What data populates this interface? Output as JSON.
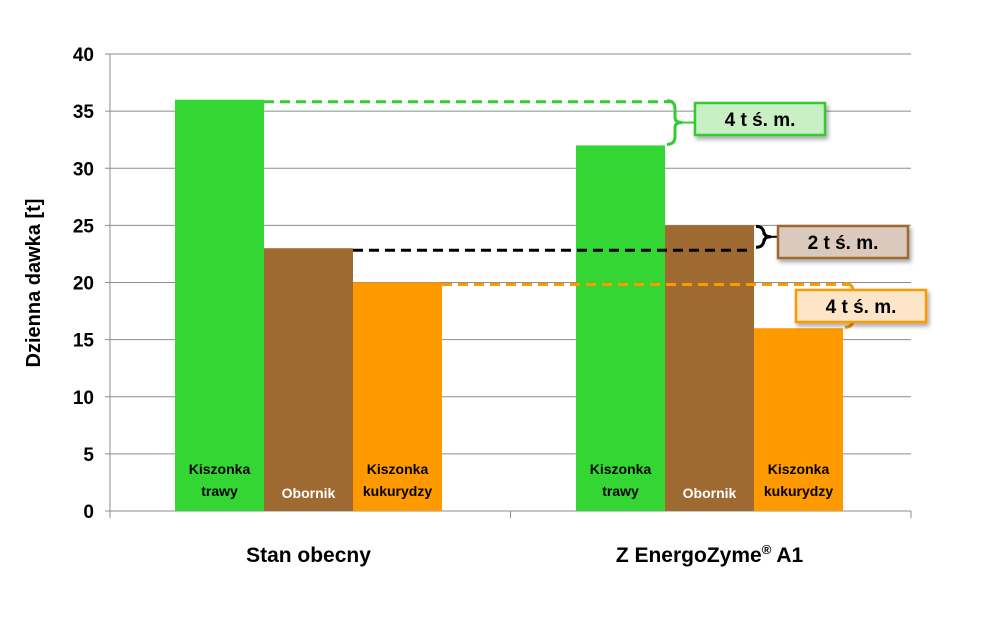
{
  "chart_data": {
    "type": "bar",
    "ylabel": "Dzienna dawka [t]",
    "ylim": [
      0,
      40
    ],
    "yticks": [
      "0",
      "5",
      "10",
      "15",
      "20",
      "25",
      "30",
      "35",
      "40"
    ],
    "grid": true,
    "categories": [
      {
        "label": "Stan obecny",
        "superscript": ""
      },
      {
        "label": "Z EnergoZyme",
        "superscript": "®",
        "suffix": " A1"
      }
    ],
    "series": [
      {
        "name": "Kiszonka trawy",
        "lines": [
          "Kiszonka",
          "trawy"
        ],
        "color": "#33d633",
        "label_color": "#000000",
        "values": [
          36,
          32
        ]
      },
      {
        "name": "Obornik",
        "lines": [
          "Obornik"
        ],
        "color": "#9e6a32",
        "label_color": "#ffffff",
        "values": [
          23,
          25
        ]
      },
      {
        "name": "Kiszonka kukurydzy",
        "lines": [
          "Kiszonka",
          "kukurydzy"
        ],
        "color": "#ff9900",
        "label_color": "#000000",
        "values": [
          20,
          16
        ]
      }
    ],
    "annotations": [
      {
        "text": "4 t ś. m.",
        "series": 0,
        "fill": "#c9f0c4",
        "stroke": "#33cc33"
      },
      {
        "text": "2 t ś. m.",
        "series": 1,
        "fill": "#dcc9bd",
        "stroke": "#9e6a32"
      },
      {
        "text": "4 t ś. m.",
        "series": 2,
        "fill": "#fde6c7",
        "stroke": "#ff9900"
      }
    ]
  }
}
